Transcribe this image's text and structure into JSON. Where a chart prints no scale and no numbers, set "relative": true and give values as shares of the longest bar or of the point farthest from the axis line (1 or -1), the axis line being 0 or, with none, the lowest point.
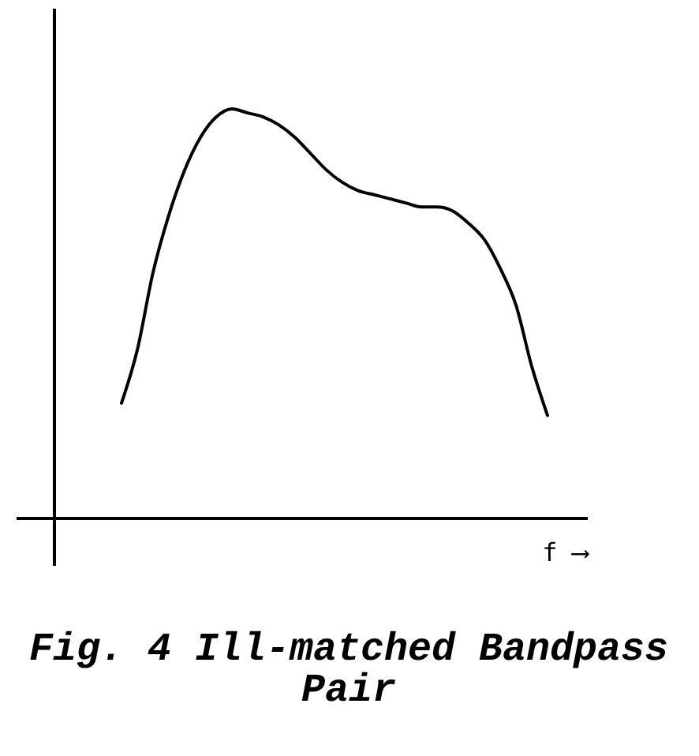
{
  "chart_data": {
    "type": "line",
    "title": "Fig. 4  Ill-matched Bandpass Pair",
    "xlabel": "f ⟶",
    "categories": [
      null,
      null,
      null,
      null,
      null,
      null,
      null,
      null,
      null,
      null,
      null,
      null,
      null,
      null,
      null,
      null,
      null,
      null,
      null,
      null,
      null,
      null,
      null,
      null,
      null,
      null,
      null,
      null
    ],
    "values": [
      0.28,
      0.41,
      0.6,
      0.74,
      0.85,
      0.93,
      0.98,
      1,
      0.99,
      0.98,
      0.96,
      0.93,
      0.89,
      0.85,
      0.82,
      0.8,
      0.79,
      0.78,
      0.77,
      0.76,
      0.76,
      0.75,
      0.72,
      0.68,
      0.61,
      0.52,
      0.37,
      0.25
    ],
    "color": "#000000",
    "relative": true,
    "tick_labels": false
  }
}
